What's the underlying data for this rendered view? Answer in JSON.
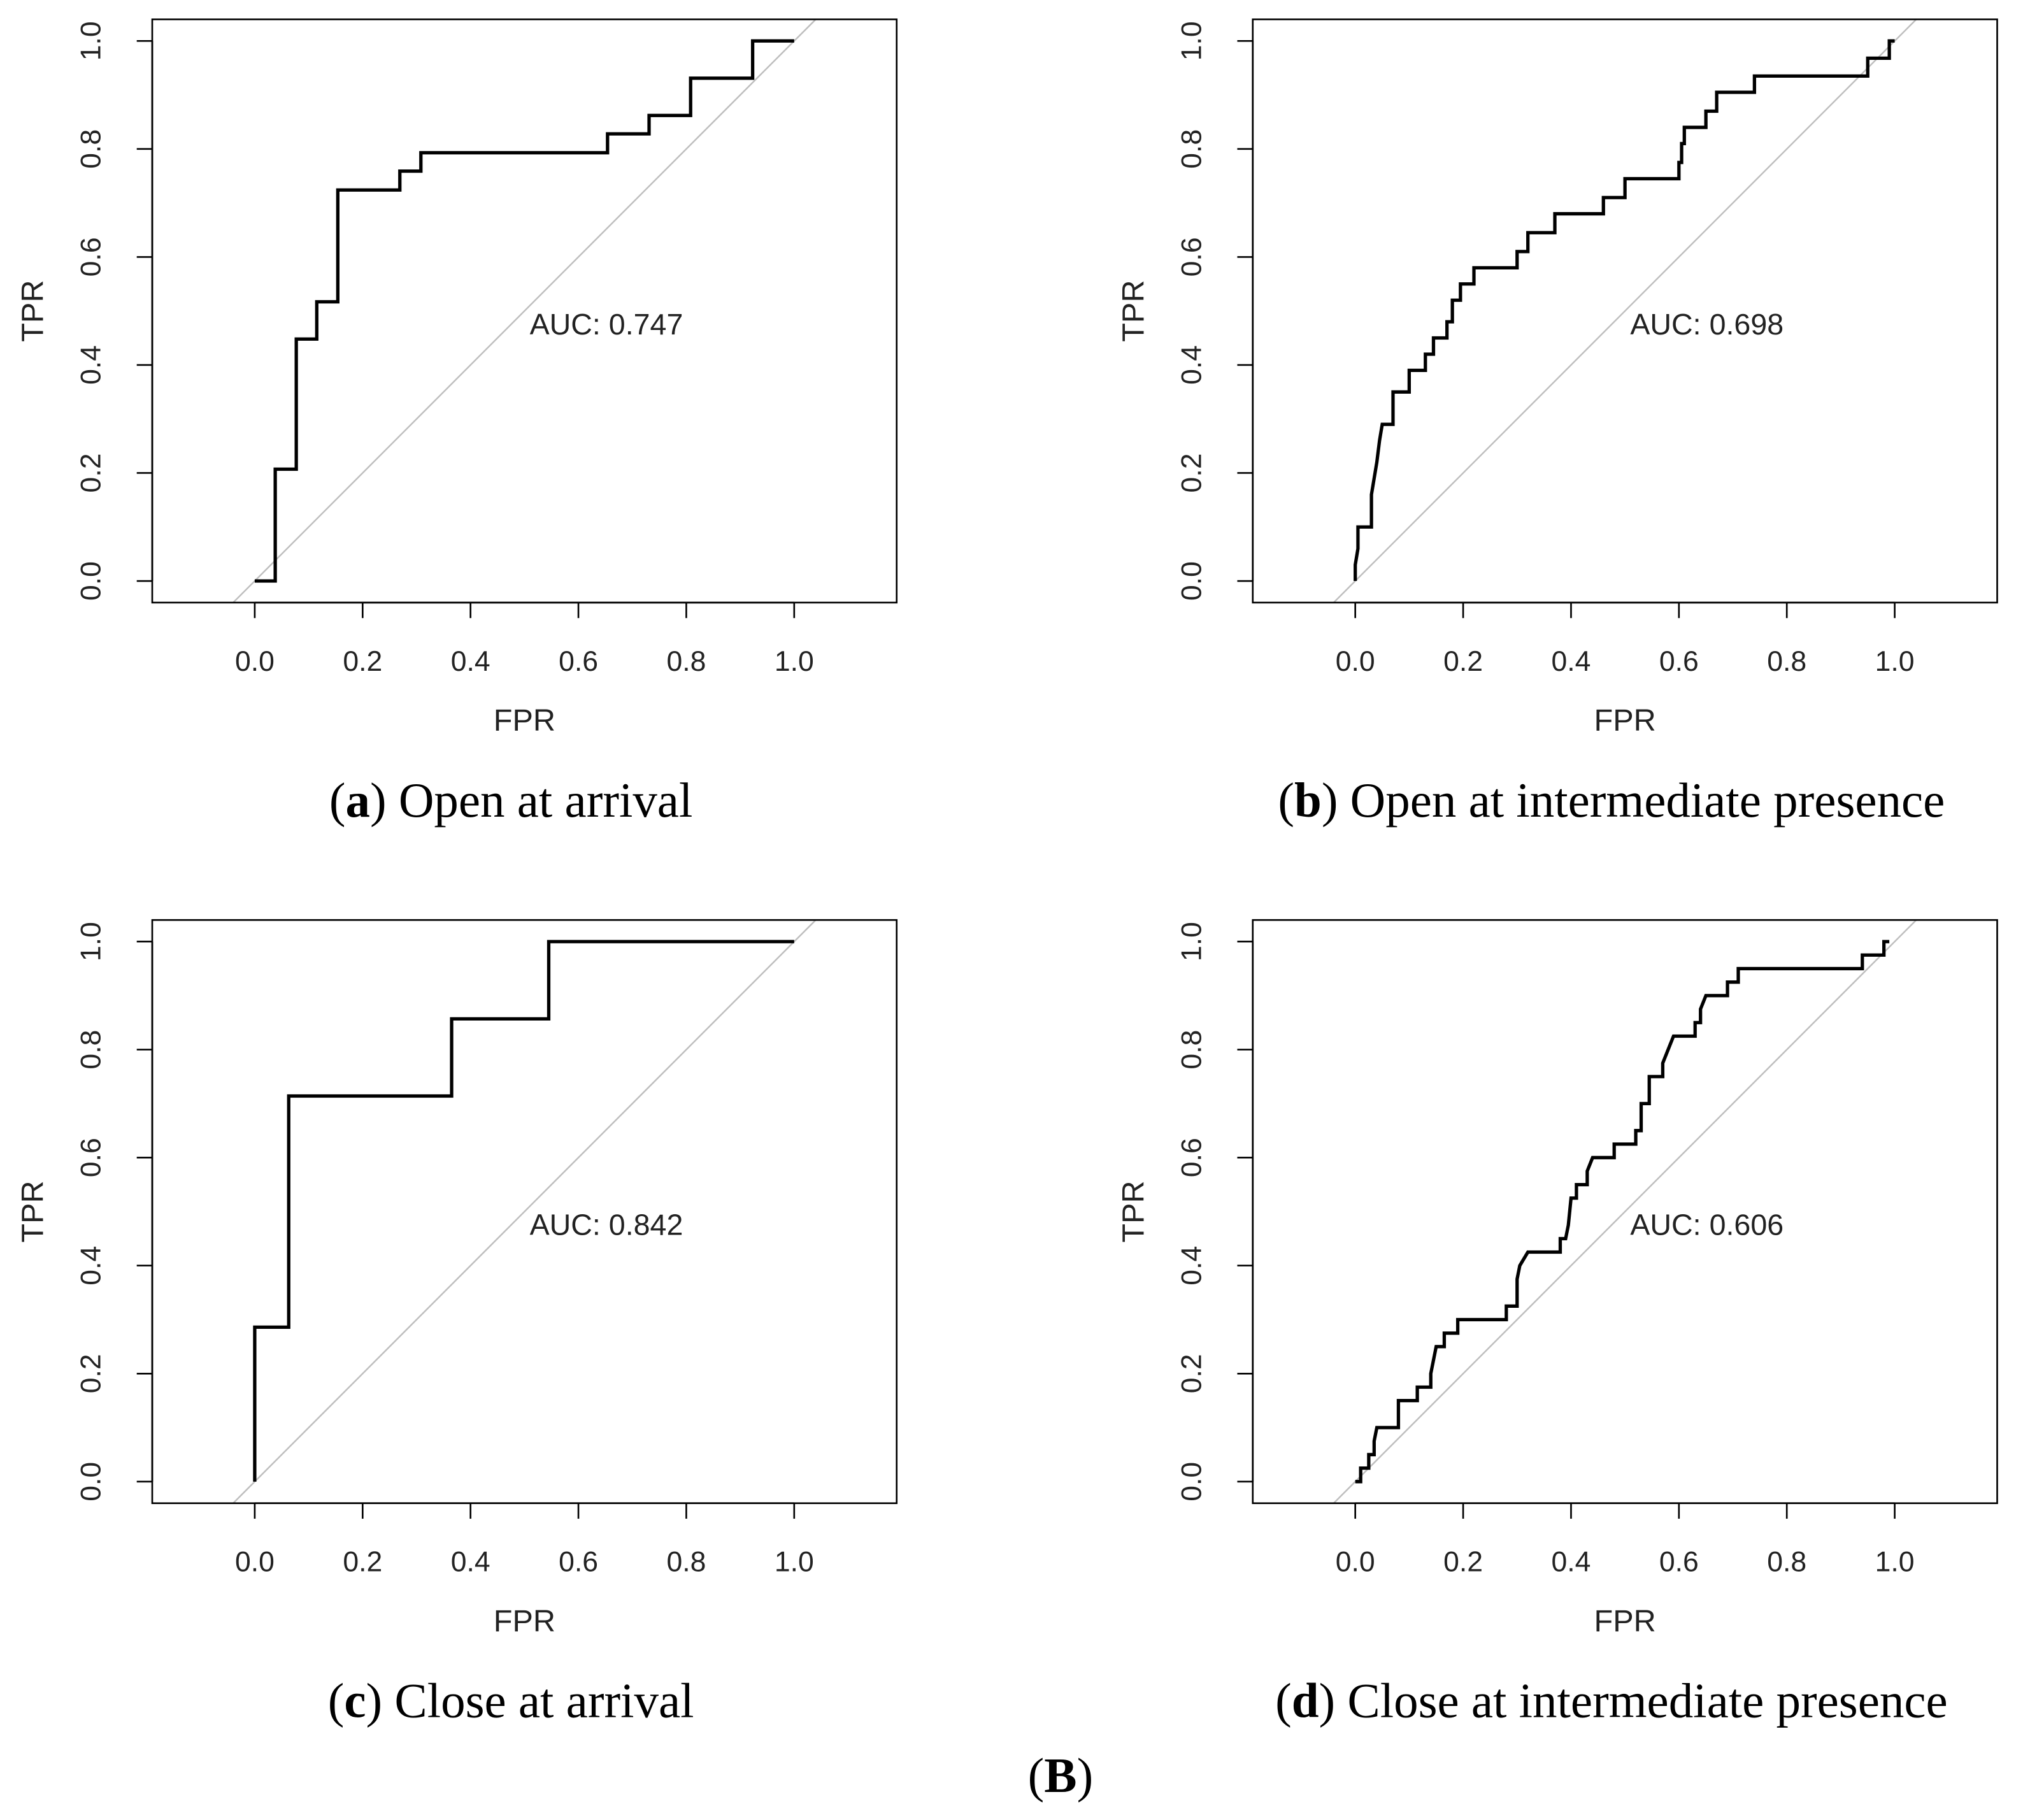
{
  "chart_data": [
    {
      "type": "line",
      "xlabel": "FPR",
      "ylabel": "TPR",
      "annotation": "AUC: 0.747",
      "color": "#000000",
      "reference_color": "#bebebe",
      "caption": [
        "(",
        "a",
        ") Open at arrival"
      ],
      "xlim": [
        -0.19,
        1.19
      ],
      "ylim": [
        -0.04,
        1.04
      ],
      "xticks": [
        {
          "value": 0,
          "label": "0.0"
        },
        0.2,
        0.4,
        0.6,
        0.8,
        {
          "value": 1,
          "label": "1.0"
        }
      ],
      "yticks": [
        {
          "value": 0,
          "label": "0.0"
        },
        0.2,
        0.4,
        0.6,
        0.8,
        {
          "value": 1,
          "label": "1.0"
        }
      ],
      "x": [
        0,
        0.038,
        0.038,
        0.077,
        0.077,
        0.115,
        0.115,
        0.154,
        0.154,
        0.269,
        0.269,
        0.308,
        0.308,
        0.654,
        0.654,
        0.731,
        0.731,
        0.808,
        0.808,
        0.923,
        0.923,
        1
      ],
      "values": [
        0,
        0,
        0.207,
        0.207,
        0.448,
        0.448,
        0.517,
        0.517,
        0.724,
        0.724,
        0.759,
        0.759,
        0.793,
        0.793,
        0.828,
        0.828,
        0.862,
        0.862,
        0.931,
        0.931,
        1,
        1
      ]
    },
    {
      "type": "line",
      "xlabel": "FPR",
      "ylabel": "TPR",
      "annotation": "AUC: 0.698",
      "color": "#000000",
      "reference_color": "#bebebe",
      "caption": [
        "(",
        "b",
        ") Open at intermediate presence"
      ],
      "xlim": [
        -0.19,
        1.19
      ],
      "ylim": [
        -0.04,
        1.04
      ],
      "xticks": [
        {
          "value": 0,
          "label": "0.0"
        },
        0.2,
        0.4,
        0.6,
        0.8,
        {
          "value": 1,
          "label": "1.0"
        }
      ],
      "yticks": [
        {
          "value": 0,
          "label": "0.0"
        },
        0.2,
        0.4,
        0.6,
        0.8,
        {
          "value": 1,
          "label": "1.0"
        }
      ],
      "x": [
        0,
        0,
        0.005,
        0.005,
        0.03,
        0.03,
        0.035,
        0.04,
        0.045,
        0.05,
        0.07,
        0.07,
        0.1,
        0.1,
        0.13,
        0.13,
        0.145,
        0.145,
        0.17,
        0.17,
        0.18,
        0.18,
        0.195,
        0.195,
        0.22,
        0.22,
        0.3,
        0.3,
        0.32,
        0.32,
        0.37,
        0.37,
        0.46,
        0.46,
        0.5,
        0.5,
        0.6,
        0.6,
        0.605,
        0.605,
        0.61,
        0.61,
        0.65,
        0.65,
        0.67,
        0.67,
        0.74,
        0.74,
        0.95,
        0.95,
        0.99,
        0.99,
        1
      ],
      "values": [
        0,
        0.03,
        0.06,
        0.1,
        0.1,
        0.16,
        0.19,
        0.22,
        0.26,
        0.29,
        0.29,
        0.35,
        0.35,
        0.39,
        0.39,
        0.42,
        0.42,
        0.45,
        0.45,
        0.48,
        0.48,
        0.52,
        0.52,
        0.55,
        0.55,
        0.58,
        0.58,
        0.61,
        0.61,
        0.645,
        0.645,
        0.68,
        0.68,
        0.71,
        0.71,
        0.745,
        0.745,
        0.775,
        0.775,
        0.81,
        0.81,
        0.84,
        0.84,
        0.87,
        0.87,
        0.905,
        0.905,
        0.935,
        0.935,
        0.968,
        0.968,
        1,
        1
      ]
    },
    {
      "type": "line",
      "xlabel": "FPR",
      "ylabel": "TPR",
      "annotation": "AUC: 0.842",
      "color": "#000000",
      "reference_color": "#bebebe",
      "caption": [
        "(",
        "c",
        ") Close at arrival"
      ],
      "xlim": [
        -0.19,
        1.19
      ],
      "ylim": [
        -0.04,
        1.04
      ],
      "xticks": [
        {
          "value": 0,
          "label": "0.0"
        },
        0.2,
        0.4,
        0.6,
        0.8,
        {
          "value": 1,
          "label": "1.0"
        }
      ],
      "yticks": [
        {
          "value": 0,
          "label": "0.0"
        },
        0.2,
        0.4,
        0.6,
        0.8,
        {
          "value": 1,
          "label": "1.0"
        }
      ],
      "x": [
        0,
        0,
        0.063,
        0.063,
        0.365,
        0.365,
        0.545,
        0.545,
        1
      ],
      "values": [
        0,
        0.286,
        0.286,
        0.714,
        0.714,
        0.857,
        0.857,
        1,
        1
      ]
    },
    {
      "type": "line",
      "xlabel": "FPR",
      "ylabel": "TPR",
      "annotation": "AUC: 0.606",
      "color": "#000000",
      "reference_color": "#bebebe",
      "caption": [
        "(",
        "d",
        ") Close at intermediate presence"
      ],
      "xlim": [
        -0.19,
        1.19
      ],
      "ylim": [
        -0.04,
        1.04
      ],
      "xticks": [
        {
          "value": 0,
          "label": "0.0"
        },
        0.2,
        0.4,
        0.6,
        0.8,
        {
          "value": 1,
          "label": "1.0"
        }
      ],
      "yticks": [
        {
          "value": 0,
          "label": "0.0"
        },
        0.2,
        0.4,
        0.6,
        0.8,
        {
          "value": 1,
          "label": "1.0"
        }
      ],
      "x": [
        0,
        0.01,
        0.01,
        0.025,
        0.025,
        0.035,
        0.035,
        0.04,
        0.08,
        0.08,
        0.115,
        0.115,
        0.14,
        0.14,
        0.145,
        0.15,
        0.165,
        0.165,
        0.19,
        0.19,
        0.28,
        0.28,
        0.3,
        0.3,
        0.305,
        0.32,
        0.38,
        0.38,
        0.39,
        0.395,
        0.4,
        0.41,
        0.41,
        0.43,
        0.43,
        0.44,
        0.48,
        0.48,
        0.52,
        0.52,
        0.53,
        0.53,
        0.545,
        0.545,
        0.57,
        0.57,
        0.58,
        0.59,
        0.63,
        0.63,
        0.64,
        0.64,
        0.65,
        0.69,
        0.69,
        0.71,
        0.71,
        0.94,
        0.94,
        0.98,
        0.98,
        0.99
      ],
      "values": [
        0,
        0,
        0.025,
        0.025,
        0.05,
        0.05,
        0.075,
        0.1,
        0.1,
        0.15,
        0.15,
        0.175,
        0.175,
        0.2,
        0.225,
        0.25,
        0.25,
        0.275,
        0.275,
        0.3,
        0.3,
        0.325,
        0.325,
        0.375,
        0.4,
        0.425,
        0.425,
        0.45,
        0.45,
        0.475,
        0.525,
        0.525,
        0.55,
        0.55,
        0.575,
        0.6,
        0.6,
        0.625,
        0.625,
        0.65,
        0.65,
        0.7,
        0.7,
        0.75,
        0.75,
        0.775,
        0.8,
        0.825,
        0.825,
        0.85,
        0.85,
        0.875,
        0.9,
        0.9,
        0.925,
        0.925,
        0.95,
        0.95,
        0.975,
        0.975,
        1,
        1
      ]
    }
  ],
  "figure_label": [
    "(",
    "B",
    ")"
  ]
}
